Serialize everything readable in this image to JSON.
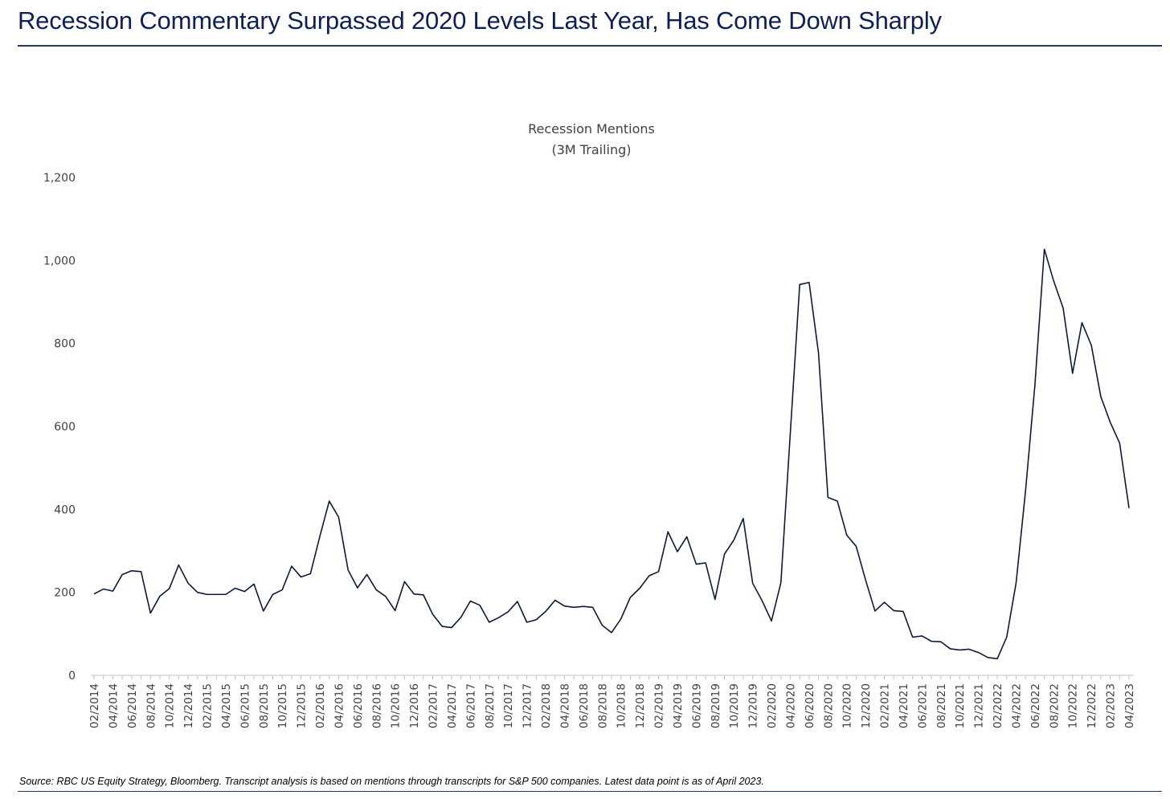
{
  "header": {
    "title": "Recession Commentary Surpassed 2020 Levels Last Year, Has Come Down Sharply"
  },
  "footer": {
    "source_note": "Source: RBC US Equity Strategy, Bloomberg. Transcript analysis is based on mentions through transcripts for S&P 500 companies. Latest data point is as of April 2023."
  },
  "colors": {
    "title": "#0e1f5b",
    "line": "#0b1a3a",
    "rule": "#1f3864",
    "axis_text": "#404040"
  },
  "chart_data": {
    "type": "line",
    "title": "Recession Mentions",
    "subtitle": "(3M Trailing)",
    "xlabel": "",
    "ylabel": "",
    "ylim": [
      0,
      1200
    ],
    "yticks": [
      0,
      200,
      400,
      600,
      800,
      1000,
      1200
    ],
    "ytick_labels": [
      "0",
      "200",
      "400",
      "600",
      "800",
      "1,000",
      "1,200"
    ],
    "grid": false,
    "legend": "none",
    "x": [
      "02/2014",
      "03/2014",
      "04/2014",
      "05/2014",
      "06/2014",
      "07/2014",
      "08/2014",
      "09/2014",
      "10/2014",
      "11/2014",
      "12/2014",
      "01/2015",
      "02/2015",
      "03/2015",
      "04/2015",
      "05/2015",
      "06/2015",
      "07/2015",
      "08/2015",
      "09/2015",
      "10/2015",
      "11/2015",
      "12/2015",
      "01/2016",
      "02/2016",
      "03/2016",
      "04/2016",
      "05/2016",
      "06/2016",
      "07/2016",
      "08/2016",
      "09/2016",
      "10/2016",
      "11/2016",
      "12/2016",
      "01/2017",
      "02/2017",
      "03/2017",
      "04/2017",
      "05/2017",
      "06/2017",
      "07/2017",
      "08/2017",
      "09/2017",
      "10/2017",
      "11/2017",
      "12/2017",
      "01/2018",
      "02/2018",
      "03/2018",
      "04/2018",
      "05/2018",
      "06/2018",
      "07/2018",
      "08/2018",
      "09/2018",
      "10/2018",
      "11/2018",
      "12/2018",
      "01/2019",
      "02/2019",
      "03/2019",
      "04/2019",
      "05/2019",
      "06/2019",
      "07/2019",
      "08/2019",
      "09/2019",
      "10/2019",
      "11/2019",
      "12/2019",
      "01/2020",
      "02/2020",
      "03/2020",
      "04/2020",
      "05/2020",
      "06/2020",
      "07/2020",
      "08/2020",
      "09/2020",
      "10/2020",
      "11/2020",
      "12/2020",
      "01/2021",
      "02/2021",
      "03/2021",
      "04/2021",
      "05/2021",
      "06/2021",
      "07/2021",
      "08/2021",
      "09/2021",
      "10/2021",
      "11/2021",
      "12/2021",
      "01/2022",
      "02/2022",
      "03/2022",
      "04/2022",
      "05/2022",
      "06/2022",
      "07/2022",
      "08/2022",
      "09/2022",
      "10/2022",
      "11/2022",
      "12/2022",
      "01/2023",
      "02/2023",
      "03/2023",
      "04/2023"
    ],
    "xtick_labels": [
      "02/2014",
      "04/2014",
      "06/2014",
      "08/2014",
      "10/2014",
      "12/2014",
      "02/2015",
      "04/2015",
      "06/2015",
      "08/2015",
      "10/2015",
      "12/2015",
      "02/2016",
      "04/2016",
      "06/2016",
      "08/2016",
      "10/2016",
      "12/2016",
      "02/2017",
      "04/2017",
      "06/2017",
      "08/2017",
      "10/2017",
      "12/2017",
      "02/2018",
      "04/2018",
      "06/2018",
      "08/2018",
      "10/2018",
      "12/2018",
      "02/2019",
      "04/2019",
      "06/2019",
      "08/2019",
      "10/2019",
      "12/2019",
      "02/2020",
      "04/2020",
      "06/2020",
      "08/2020",
      "10/2020",
      "12/2020",
      "02/2021",
      "04/2021",
      "06/2021",
      "08/2021",
      "10/2021",
      "12/2021",
      "02/2022",
      "04/2022",
      "06/2022",
      "08/2022",
      "10/2022",
      "12/2022",
      "02/2023",
      "04/2023"
    ],
    "series": [
      {
        "values": [
          196,
          208,
          203,
          243,
          252,
          250,
          150,
          191,
          209,
          266,
          222,
          200,
          195,
          195,
          195,
          210,
          202,
          220,
          155,
          195,
          206,
          263,
          237,
          245,
          335,
          420,
          381,
          254,
          211,
          243,
          206,
          190,
          156,
          226,
          196,
          194,
          147,
          118,
          115,
          140,
          179,
          169,
          128,
          139,
          153,
          178,
          128,
          134,
          154,
          181,
          167,
          164,
          166,
          164,
          121,
          103,
          136,
          188,
          210,
          240,
          250,
          346,
          298,
          334,
          268,
          271,
          183,
          292,
          326,
          378,
          222,
          180,
          131,
          223,
          583,
          942,
          947,
          777,
          429,
          420,
          338,
          311,
          230,
          155,
          176,
          156,
          154,
          92,
          95,
          82,
          81,
          64,
          61,
          63,
          55,
          43,
          40,
          92,
          223,
          444,
          700,
          1027,
          950,
          885,
          728,
          850,
          795,
          672,
          610,
          560,
          403
        ]
      }
    ]
  }
}
